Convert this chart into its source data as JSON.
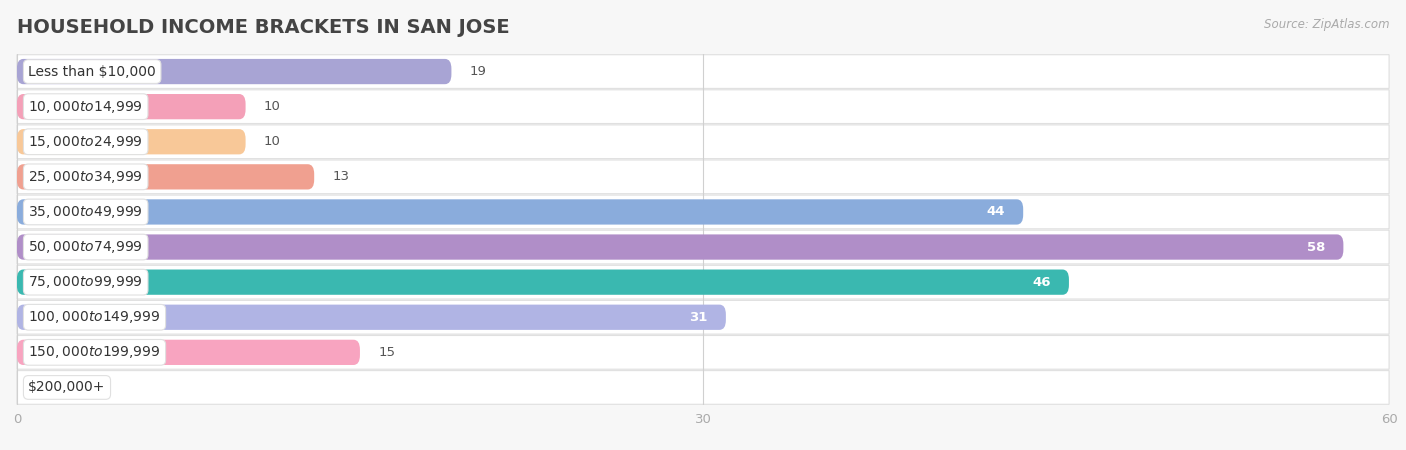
{
  "title": "HOUSEHOLD INCOME BRACKETS IN SAN JOSE",
  "source": "Source: ZipAtlas.com",
  "categories": [
    "Less than $10,000",
    "$10,000 to $14,999",
    "$15,000 to $24,999",
    "$25,000 to $34,999",
    "$35,000 to $49,999",
    "$50,000 to $74,999",
    "$75,000 to $99,999",
    "$100,000 to $149,999",
    "$150,000 to $199,999",
    "$200,000+"
  ],
  "values": [
    19,
    10,
    10,
    13,
    44,
    58,
    46,
    31,
    15,
    0
  ],
  "bar_colors": [
    "#a8a4d4",
    "#f4a0b8",
    "#f8c898",
    "#f0a090",
    "#8aacdc",
    "#b08ec8",
    "#3ab8b0",
    "#b0b4e4",
    "#f8a4c0",
    "#f8d0a8"
  ],
  "xlim": [
    0,
    60
  ],
  "xticks": [
    0,
    30,
    60
  ],
  "background_color": "#f7f7f7",
  "bar_row_bg": "#ffffff",
  "row_border": "#e0e0e0",
  "title_fontsize": 14,
  "label_fontsize": 10,
  "value_fontsize": 9.5,
  "value_threshold_inside": 20
}
